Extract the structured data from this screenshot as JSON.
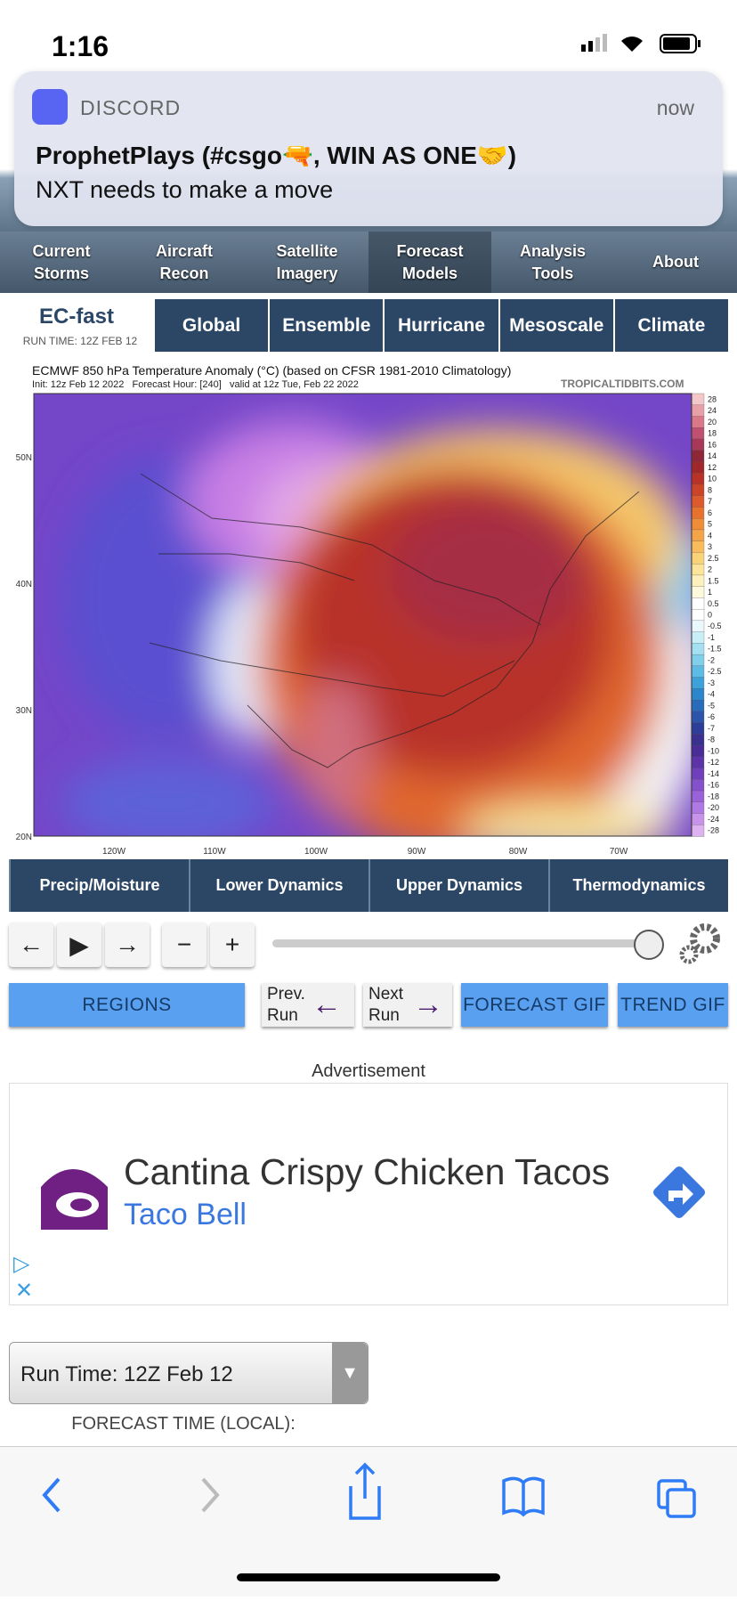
{
  "status_bar": {
    "time": "1:16"
  },
  "notification": {
    "app": "DISCORD",
    "time": "now",
    "title": "ProphetPlays (#csgo🔫, WIN AS ONE🤝)",
    "body": "NXT needs to make a move"
  },
  "nav": [
    "Current Storms",
    "Aircraft Recon",
    "Satellite Imagery",
    "Forecast Models",
    "Analysis Tools",
    "About"
  ],
  "model": {
    "name": "EC-fast",
    "run_time": "RUN TIME: 12Z FEB 12"
  },
  "tabs": [
    "Global",
    "Ensemble",
    "Hurricane",
    "Mesoscale",
    "Climate"
  ],
  "map": {
    "title": "ECMWF 850 hPa Temperature Anomaly (°C) (based on CFSR 1981-2010 Climatology)",
    "subtitle": "Init: 12z Feb 12 2022   Forecast Hour: [240]   valid at 12z Tue, Feb 22 2022",
    "credit": "TROPICALTIDBITS.COM",
    "lat_labels": [
      "50N",
      "40N",
      "30N",
      "20N"
    ],
    "lon_labels": [
      "120W",
      "110W",
      "100W",
      "90W",
      "80W",
      "70W"
    ],
    "colorbar_labels": [
      "28",
      "24",
      "20",
      "18",
      "16",
      "14",
      "12",
      "10",
      "8",
      "7",
      "6",
      "5",
      "4",
      "3",
      "2.5",
      "2",
      "1.5",
      "1",
      "0.5",
      "0",
      "-0.5",
      "-1",
      "-1.5",
      "-2",
      "-2.5",
      "-3",
      "-4",
      "-5",
      "-6",
      "-7",
      "-8",
      "-10",
      "-12",
      "-14",
      "-16",
      "-18",
      "-20",
      "-24",
      "-28"
    ]
  },
  "sub_tabs": [
    "Precip/Moisture",
    "Lower Dynamics",
    "Upper Dynamics",
    "Thermodynamics"
  ],
  "controls": {
    "regions": "REGIONS",
    "prev": "Prev. Run",
    "next": "Next Run",
    "forecast_gif": "FORECAST GIF",
    "trend_gif": "TREND GIF"
  },
  "ad": {
    "label": "Advertisement",
    "headline": "Cantina Crispy Chicken Tacos",
    "advertiser": "Taco Bell"
  },
  "run_select": "Run Time: 12Z Feb 12",
  "forecast_time_label": "FORECAST TIME (LOCAL):"
}
